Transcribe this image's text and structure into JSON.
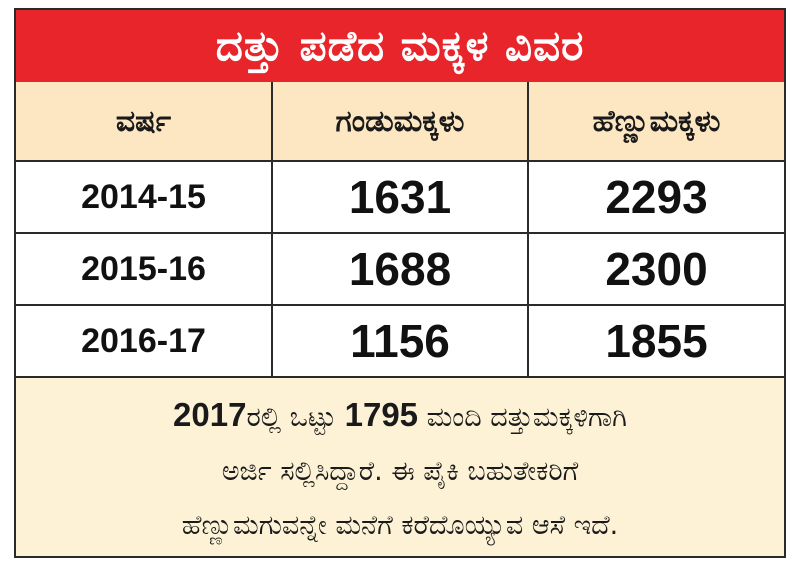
{
  "title": "ದತ್ತು ಪಡೆದ ಮಕ್ಕಳ ವಿವರ",
  "headers": {
    "year": "ವರ್ಷ",
    "boys": "ಗಂಡುಮಕ್ಕಳು",
    "girls": "ಹೆಣ್ಣುಮಕ್ಕಳು"
  },
  "rows": [
    {
      "year": "2014-15",
      "boys": "1631",
      "girls": "2293"
    },
    {
      "year": "2015-16",
      "boys": "1688",
      "girls": "2300"
    },
    {
      "year": "2016-17",
      "boys": "1156",
      "girls": "1855"
    }
  ],
  "note": {
    "year": "2017",
    "part1": "ರಲ್ಲಿ ಒಟ್ಟು ",
    "count": "1795",
    "part2": " ಮಂದಿ ದತ್ತುಮಕ್ಕಳಿಗಾಗಿ",
    "line2": "ಅರ್ಜಿ ಸಲ್ಲಿಸಿದ್ದಾರೆ. ಈ ಪೈಕಿ ಬಹುತೇಕರಿಗೆ",
    "line3": "ಹೆಣ್ಣುಮಗುವನ್ನೇ ಮನೆಗೆ ಕರೆದೊಯ್ಯುವ ಆಸೆ ಇದೆ."
  },
  "colors": {
    "title_bg": "#e8252b",
    "header_bg": "#fde7c2",
    "note_bg": "#fdf2d6"
  }
}
